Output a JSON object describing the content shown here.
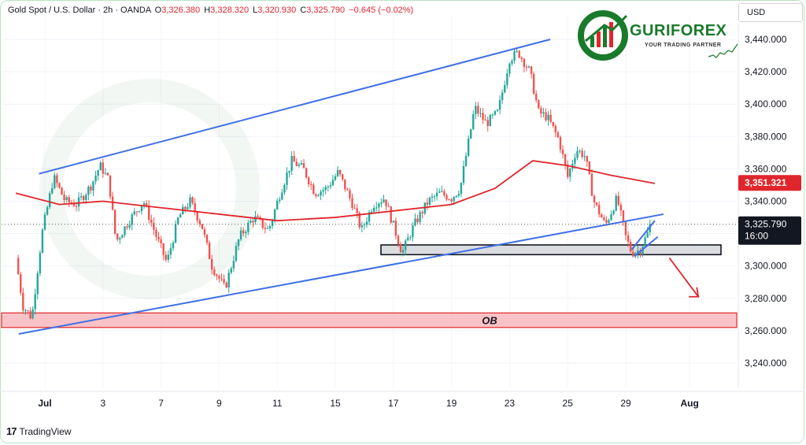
{
  "header": {
    "symbol": "Gold Spot / U.S. Dollar · 2h · OANDA",
    "o_label": "O",
    "o_value": "3,326.380",
    "h_label": "H",
    "h_value": "3,328.320",
    "l_label": "L",
    "l_value": "3,320.930",
    "c_label": "C",
    "c_value": "3,325.790",
    "change": "−0.645 (−0.02%)"
  },
  "currency": "USD",
  "logo": {
    "name": "GURIFOREX",
    "tagline": "YOUR TRADING PARTNER"
  },
  "footer": {
    "brand": "TradingView",
    "mark": "17"
  },
  "colors": {
    "up": "#26a69a",
    "down": "#ef5350",
    "ma": "#e0262c",
    "channel": "#3f6fe8",
    "ob_fill": "#f7b3b8",
    "ob_stroke": "#e0262c",
    "zone_fill": "#d6d8dc",
    "logo_green": "#1a7a2b"
  },
  "chart_data": {
    "type": "candlestick",
    "instrument": "Gold Spot / U.S. Dollar",
    "timeframe": "2h",
    "y_axis": {
      "ticks": [
        "3,240.000",
        "3,260.000",
        "3,280.000",
        "3,300.000",
        "3,320.000",
        "3,340.000",
        "3,360.000",
        "3,380.000",
        "3,400.000",
        "3,420.000",
        "3,440.000"
      ],
      "tick_values": [
        3240,
        3260,
        3280,
        3300,
        3320,
        3340,
        3360,
        3380,
        3400,
        3420,
        3440
      ],
      "range": [
        3232,
        3452
      ]
    },
    "x_axis": {
      "ticks": [
        "Jul",
        "3",
        "7",
        "9",
        "11",
        "15",
        "17",
        "19",
        "23",
        "25",
        "29",
        "Aug"
      ],
      "tick_days": [
        1,
        3,
        5,
        7,
        9,
        11,
        13,
        15,
        17,
        19,
        21,
        23.2
      ]
    },
    "price_waypoints": [
      [
        0.0,
        3305
      ],
      [
        0.25,
        3275
      ],
      [
        0.55,
        3268
      ],
      [
        0.9,
        3320
      ],
      [
        1.3,
        3355
      ],
      [
        1.7,
        3340
      ],
      [
        2.1,
        3338
      ],
      [
        2.6,
        3350
      ],
      [
        2.9,
        3362
      ],
      [
        3.2,
        3353
      ],
      [
        3.45,
        3315
      ],
      [
        3.9,
        3328
      ],
      [
        4.4,
        3340
      ],
      [
        4.8,
        3320
      ],
      [
        5.2,
        3302
      ],
      [
        5.6,
        3330
      ],
      [
        6.0,
        3340
      ],
      [
        6.4,
        3325
      ],
      [
        6.75,
        3300
      ],
      [
        7.2,
        3286
      ],
      [
        7.7,
        3318
      ],
      [
        8.2,
        3330
      ],
      [
        8.7,
        3322
      ],
      [
        9.1,
        3345
      ],
      [
        9.5,
        3365
      ],
      [
        9.9,
        3360
      ],
      [
        10.3,
        3345
      ],
      [
        10.7,
        3348
      ],
      [
        11.1,
        3358
      ],
      [
        11.6,
        3338
      ],
      [
        11.9,
        3322
      ],
      [
        12.3,
        3338
      ],
      [
        12.7,
        3342
      ],
      [
        13.0,
        3325
      ],
      [
        13.3,
        3308
      ],
      [
        13.7,
        3325
      ],
      [
        14.2,
        3340
      ],
      [
        14.6,
        3345
      ],
      [
        15.0,
        3342
      ],
      [
        15.3,
        3348
      ],
      [
        15.8,
        3398
      ],
      [
        16.2,
        3388
      ],
      [
        16.6,
        3395
      ],
      [
        17.0,
        3428
      ],
      [
        17.3,
        3432
      ],
      [
        17.7,
        3420
      ],
      [
        18.0,
        3395
      ],
      [
        18.3,
        3392
      ],
      [
        18.7,
        3378
      ],
      [
        19.0,
        3355
      ],
      [
        19.3,
        3372
      ],
      [
        19.6,
        3368
      ],
      [
        19.9,
        3340
      ],
      [
        20.3,
        3325
      ],
      [
        20.7,
        3342
      ],
      [
        21.0,
        3318
      ],
      [
        21.2,
        3308
      ],
      [
        21.5,
        3310
      ],
      [
        21.8,
        3322
      ],
      [
        21.9,
        3326
      ]
    ],
    "moving_average": {
      "last_value": "3,351.321",
      "points": [
        [
          0.0,
          3345
        ],
        [
          1.5,
          3338
        ],
        [
          3.0,
          3340
        ],
        [
          5.0,
          3336
        ],
        [
          7.0,
          3332
        ],
        [
          9.0,
          3328
        ],
        [
          11.0,
          3330
        ],
        [
          13.0,
          3334
        ],
        [
          15.0,
          3338
        ],
        [
          16.5,
          3348
        ],
        [
          17.8,
          3365
        ],
        [
          19.0,
          3362
        ],
        [
          20.5,
          3356
        ],
        [
          22.0,
          3351
        ]
      ]
    },
    "last_price": {
      "value": 3325.79,
      "label": "3,325.790",
      "countdown": "16:00"
    },
    "annotations": {
      "ob_zone": {
        "label": "OB",
        "from": 3262,
        "to": 3271
      },
      "support_zone": {
        "from": 3307,
        "to": 3313
      },
      "channel_upper": [
        [
          0.8,
          3357
        ],
        [
          18.4,
          3440
        ]
      ],
      "channel_lower": [
        [
          0.1,
          3258
        ],
        [
          22.3,
          3332
        ]
      ],
      "flag_upper": [
        [
          21.2,
          3310
        ],
        [
          22.0,
          3328
        ]
      ],
      "flag_lower": [
        [
          21.3,
          3306
        ],
        [
          22.1,
          3318
        ]
      ],
      "projection_arrow": [
        [
          22.5,
          3305
        ],
        [
          23.5,
          3281
        ]
      ]
    }
  }
}
